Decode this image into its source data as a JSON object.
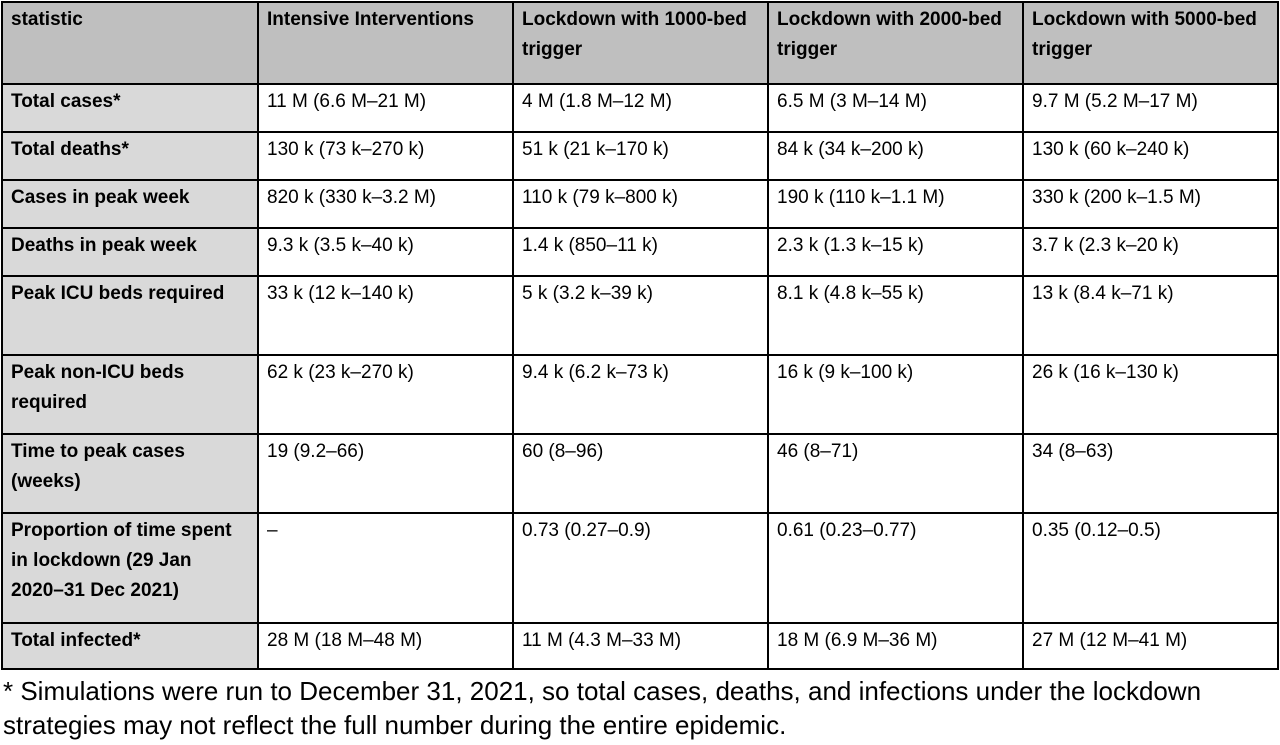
{
  "table": {
    "headers": [
      "statistic",
      "Intensive Interventions",
      "Lockdown with 1000-bed trigger",
      "Lockdown with 2000-bed trigger",
      "Lockdown with 5000-bed trigger"
    ],
    "rows": [
      {
        "label": "Total cases*",
        "values": [
          "11 M (6.6 M–21 M)",
          "4 M (1.8 M–12 M)",
          "6.5 M (3 M–14 M)",
          "9.7 M (5.2 M–17 M)"
        ]
      },
      {
        "label": "Total deaths*",
        "values": [
          "130 k (73 k–270 k)",
          "51 k (21 k–170 k)",
          "84 k (34 k–200 k)",
          "130 k (60 k–240 k)"
        ]
      },
      {
        "label": "Cases in peak week",
        "values": [
          "820 k (330 k–3.2 M)",
          "110 k (79 k–800 k)",
          "190 k (110 k–1.1 M)",
          "330 k (200 k–1.5 M)"
        ]
      },
      {
        "label": "Deaths in peak week",
        "values": [
          "9.3 k (3.5 k–40 k)",
          "1.4 k (850–11 k)",
          "2.3 k (1.3 k–15 k)",
          "3.7 k (2.3 k–20 k)"
        ]
      },
      {
        "label": "Peak ICU beds required",
        "values": [
          "33 k (12 k–140 k)",
          "5 k (3.2 k–39 k)",
          "8.1 k (4.8 k–55 k)",
          "13 k (8.4 k–71 k)"
        ]
      },
      {
        "label": "Peak non-ICU beds required",
        "values": [
          "62 k (23 k–270 k)",
          "9.4 k (6.2 k–73 k)",
          "16 k (9 k–100 k)",
          "26 k (16 k–130 k)"
        ]
      },
      {
        "label": "Time to peak cases (weeks)",
        "values": [
          "19 (9.2–66)",
          "60 (8–96)",
          "46 (8–71)",
          "34 (8–63)"
        ]
      },
      {
        "label": "Proportion of time spent in lockdown (29 Jan 2020–31 Dec 2021)",
        "values": [
          "–",
          "0.73 (0.27–0.9)",
          "0.61 (0.23–0.77)",
          "0.35 (0.12–0.5)"
        ]
      },
      {
        "label": "Total infected*",
        "values": [
          "28 M (18 M–48 M)",
          "11 M (4.3 M–33 M)",
          "18 M (6.9 M–36 M)",
          "27 M (12 M–41 M)"
        ]
      }
    ]
  },
  "footnote": "* Simulations were run to December 31, 2021, so total cases, deaths, and infections under the lockdown strategies may not reflect the full number during the entire epidemic."
}
